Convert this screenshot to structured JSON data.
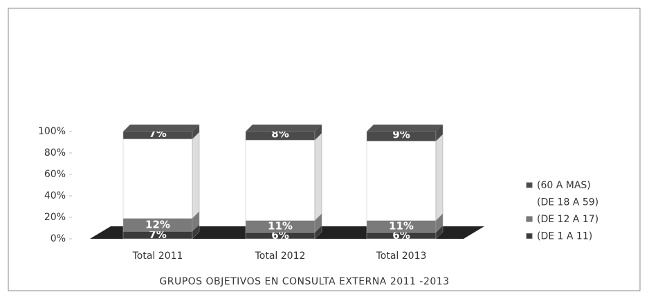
{
  "chart_data": {
    "type": "bar",
    "stacked": true,
    "title": "GRUPOS OBJETIVOS EN CONSULTA EXTERNA  2011 -2013",
    "categories": [
      "Total 2011",
      "Total 2012",
      "Total 2013"
    ],
    "series": [
      {
        "name": "(DE 1 A 11)",
        "color": "#3a3a3a",
        "values": [
          7,
          6,
          6
        ],
        "value_labels": [
          "7%",
          "6%",
          "6%"
        ]
      },
      {
        "name": "(DE 12 A 17)",
        "color": "#7a7a7a",
        "values": [
          12,
          11,
          11
        ],
        "value_labels": [
          "12%",
          "11%",
          "11%"
        ]
      },
      {
        "name": "(DE 18 A 59)",
        "color": "#ffffff",
        "values": [
          74,
          75,
          74
        ]
      },
      {
        "name": "(60 A MAS)",
        "color": "#4a4a4a",
        "values": [
          7,
          8,
          9
        ],
        "value_labels": [
          "7%",
          "8%",
          "9%"
        ]
      }
    ],
    "ylim": [
      0,
      100
    ],
    "yticks": [
      {
        "value": 0,
        "label": "0%"
      },
      {
        "value": 20,
        "label": "20%"
      },
      {
        "value": 40,
        "label": "40%"
      },
      {
        "value": 60,
        "label": "60%"
      },
      {
        "value": 80,
        "label": "80%"
      },
      {
        "value": 100,
        "label": "100%"
      }
    ]
  }
}
